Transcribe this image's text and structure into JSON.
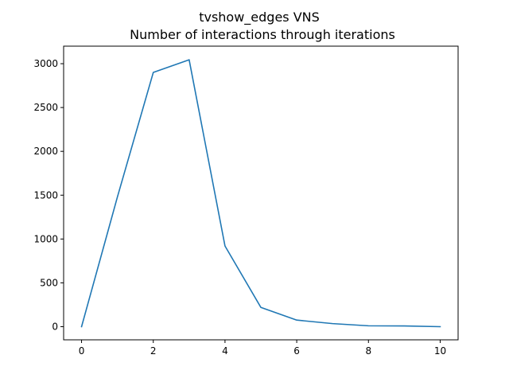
{
  "chart_data": {
    "type": "line",
    "title": "tvshow_edges VNS",
    "subtitle": "Number of interactions through iterations",
    "xlabel": "",
    "ylabel": "",
    "xlim": [
      -0.5,
      10.5
    ],
    "ylim": [
      -150,
      3200
    ],
    "x_ticks": [
      0,
      2,
      4,
      6,
      8,
      10
    ],
    "y_ticks": [
      0,
      500,
      1000,
      1500,
      2000,
      2500,
      3000
    ],
    "grid": false,
    "series": [
      {
        "color": "#1f77b4",
        "x": [
          0,
          1,
          2,
          3,
          4,
          5,
          6,
          7,
          8,
          9,
          10
        ],
        "y": [
          0,
          1480,
          2900,
          3045,
          920,
          220,
          75,
          35,
          10,
          8,
          0
        ]
      }
    ]
  }
}
